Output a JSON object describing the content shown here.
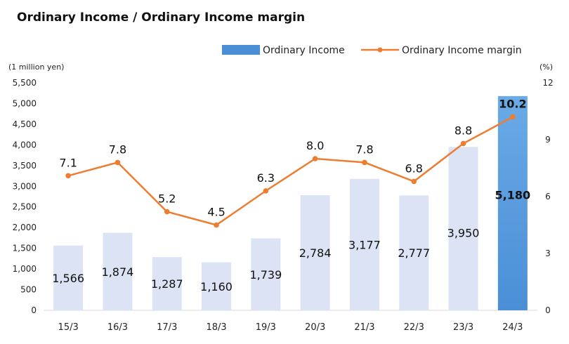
{
  "chart_data": {
    "type": "bar+line",
    "title": "Ordinary Income / Ordinary Income margin",
    "categories": [
      "15/3",
      "16/3",
      "17/3",
      "18/3",
      "19/3",
      "20/3",
      "21/3",
      "22/3",
      "23/3",
      "24/3"
    ],
    "series": [
      {
        "name": "Ordinary Income",
        "type": "bar",
        "axis": "left",
        "values": [
          1566,
          1874,
          1287,
          1160,
          1739,
          2784,
          3177,
          2777,
          3950,
          5180
        ],
        "labels": [
          "1,566",
          "1,874",
          "1,287",
          "1,160",
          "1,739",
          "2,784",
          "3,177",
          "2,777",
          "3,950",
          "5,180"
        ],
        "color": "#dbe3f4",
        "highlight_color": "#4a8fd6"
      },
      {
        "name": "Ordinary Income margin",
        "type": "line",
        "axis": "right",
        "values": [
          7.1,
          7.8,
          5.2,
          4.5,
          6.3,
          8.0,
          7.8,
          6.8,
          8.8,
          10.2
        ],
        "labels": [
          "7.1",
          "7.8",
          "5.2",
          "4.5",
          "6.3",
          "8.0",
          "7.8",
          "6.8",
          "8.8",
          "10.2"
        ],
        "color": "#ed7d31"
      }
    ],
    "highlight_index": 9,
    "y_left": {
      "unit_label": "(1 million yen)",
      "range": [
        0,
        5500
      ],
      "ticks": [
        0,
        500,
        1000,
        1500,
        2000,
        2500,
        3000,
        3500,
        4000,
        4500,
        5000,
        5500
      ],
      "tick_labels": [
        "0",
        "500",
        "1,000",
        "1,500",
        "2,000",
        "2,500",
        "3,000",
        "3,500",
        "4,000",
        "4,500",
        "5,000",
        "5,500"
      ]
    },
    "y_right": {
      "unit_label": "(%)",
      "range": [
        0,
        12
      ],
      "ticks": [
        0,
        3,
        6,
        9,
        12
      ],
      "tick_labels": [
        "0",
        "3",
        "6",
        "9",
        "12"
      ]
    },
    "grid": false,
    "legend_position": "top"
  }
}
